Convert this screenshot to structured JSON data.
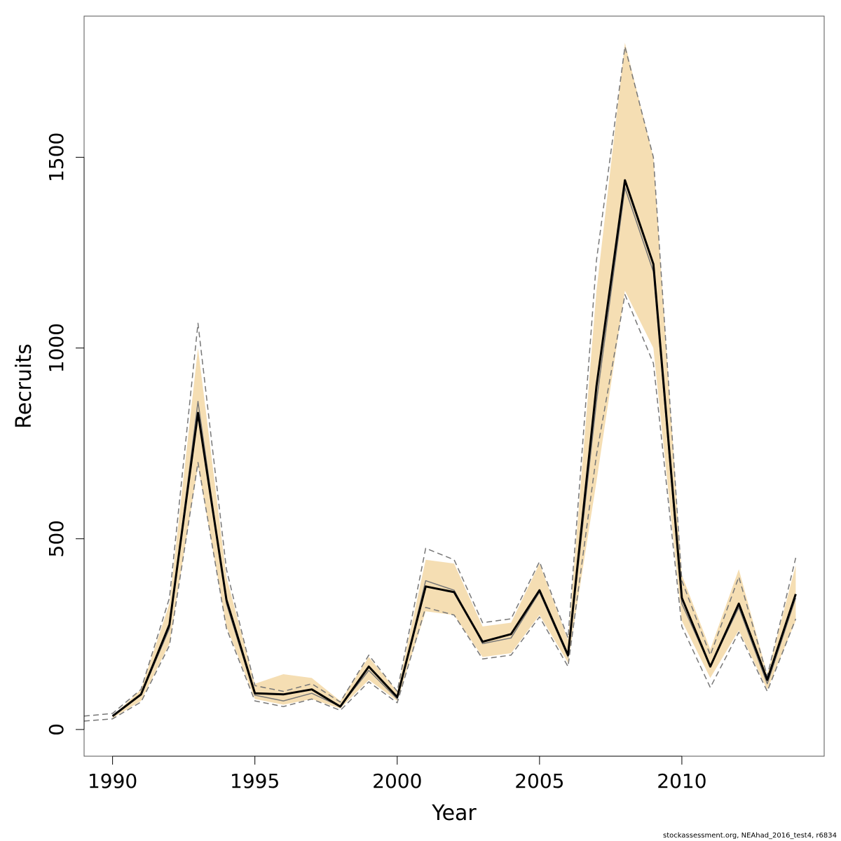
{
  "chart_data": {
    "type": "line",
    "xlabel": "Year",
    "ylabel": "Recruits",
    "xlim": [
      1989,
      2015
    ],
    "ylim": [
      -70,
      1870
    ],
    "x_ticks": [
      1990,
      1995,
      2000,
      2005,
      2010
    ],
    "y_ticks": [
      0,
      500,
      1000,
      1500
    ],
    "grid": false,
    "colors": {
      "band": "#f5deb3",
      "main_line": "#000000",
      "secondary_line": "#777777",
      "dashed_bounds": "#777777"
    },
    "x": [
      1989,
      1990,
      1991,
      1992,
      1993,
      1994,
      1995,
      1996,
      1997,
      1998,
      1999,
      2000,
      2001,
      2002,
      2003,
      2004,
      2005,
      2006,
      2007,
      2008,
      2009,
      2010,
      2011,
      2012,
      2013,
      2014
    ],
    "series": [
      {
        "role": "band",
        "lower": [
          null,
          30,
          75,
          225,
          690,
          270,
          80,
          65,
          80,
          55,
          130,
          75,
          310,
          300,
          190,
          200,
          300,
          175,
          650,
          1150,
          1000,
          285,
          135,
          260,
          105,
          285
        ],
        "upper": [
          null,
          35,
          105,
          330,
          1000,
          400,
          120,
          145,
          135,
          75,
          190,
          100,
          445,
          435,
          270,
          280,
          435,
          235,
          1150,
          1800,
          1500,
          405,
          210,
          420,
          145,
          430
        ]
      },
      {
        "role": "secondary",
        "values": [
          null,
          35,
          90,
          265,
          860,
          330,
          90,
          75,
          95,
          60,
          155,
          80,
          390,
          365,
          225,
          240,
          360,
          190,
          860,
          1420,
          1200,
          330,
          165,
          320,
          120,
          345
        ]
      },
      {
        "role": "upper-dashed",
        "values": [
          35,
          42,
          105,
          345,
          1065,
          420,
          115,
          100,
          120,
          72,
          195,
          100,
          475,
          445,
          280,
          290,
          440,
          240,
          1230,
          1790,
          1500,
          390,
          195,
          400,
          140,
          450
        ]
      },
      {
        "role": "lower-dashed",
        "values": [
          22,
          28,
          72,
          220,
          700,
          265,
          75,
          60,
          80,
          50,
          125,
          70,
          320,
          300,
          185,
          195,
          295,
          165,
          720,
          1140,
          960,
          270,
          110,
          255,
          100,
          290
        ]
      },
      {
        "role": "main",
        "values": [
          null,
          35,
          92,
          275,
          830,
          340,
          95,
          92,
          105,
          60,
          165,
          85,
          375,
          360,
          230,
          250,
          365,
          195,
          900,
          1440,
          1220,
          345,
          165,
          330,
          130,
          355
        ]
      }
    ]
  },
  "footer": {
    "source_note": "stockassessment.org, NEAhad_2016_test4, r6834"
  }
}
